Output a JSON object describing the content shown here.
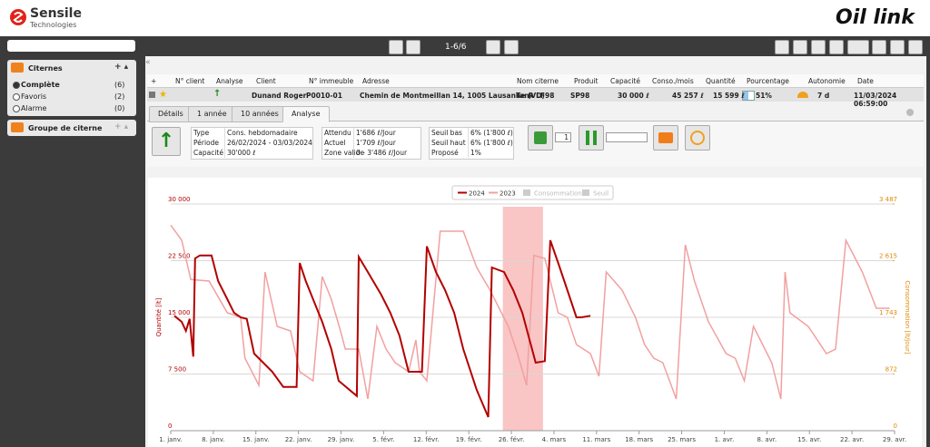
{
  "header": {
    "brand": "Sensile",
    "brand_sub": "Technologies",
    "app_name": "Oil link"
  },
  "sidebar": {
    "panels": [
      {
        "title": "Citernes",
        "items": [
          {
            "label": "Complète",
            "count": "(6)"
          },
          {
            "label": "Favoris",
            "count": "(2)"
          },
          {
            "label": "Alarme",
            "count": "(0)"
          }
        ]
      },
      {
        "title": "Groupe de citerne",
        "items": []
      }
    ]
  },
  "toolbar": {
    "pagination": "1-6/6"
  },
  "table": {
    "columns": [
      "+",
      "N° client",
      "Analyse",
      "Client",
      "N° immeuble",
      "Adresse",
      "Nom citerne",
      "Produit",
      "Capacité",
      "Conso./mois",
      "Quantité",
      "Pourcentage",
      "Autonomie",
      "Date"
    ],
    "rows": [
      [
        "Dunand Roger",
        "P0010-01",
        "Chemin de Montmeillan 14, 1005 Lausanne (VD)",
        "Tank LF98",
        "SP98",
        "30 000 ℓ",
        "45 257 ℓ",
        "15 599 ℓ",
        "51%",
        "7 d",
        "11/03/2024 06:59:00"
      ]
    ]
  },
  "tabs": [
    "Détails",
    "1 année",
    "10 années",
    "Analyse"
  ],
  "details": {
    "boxes": [
      [
        [
          "Type",
          "Cons. hebdomadaire"
        ],
        [
          "Période",
          "26/02/2024 - 03/03/2024"
        ],
        [
          "Capacité",
          "30'000 ℓ"
        ]
      ],
      [
        [
          "Attendu",
          "1'686 ℓ/Jour"
        ],
        [
          "Actuel",
          "1'709 ℓ/Jour"
        ],
        [
          "Zone valide",
          "0 - 3'486 ℓ/Jour"
        ]
      ],
      [
        [
          "Seuil bas",
          "6% (1'800 ℓ)"
        ],
        [
          "Seuil haut",
          "6% (1'800 ℓ)"
        ],
        [
          "Proposé",
          "1%"
        ]
      ]
    ],
    "input_value": "1"
  },
  "chart_data": {
    "type": "line",
    "y_label": "Quantité [lt]",
    "y2_label": "Consommation [lt/jour]",
    "legend": [
      "2024",
      "2023",
      "Consommation",
      "Seuil"
    ],
    "xlim": [
      0,
      119
    ],
    "xticks": [
      {
        "value": 0,
        "label": "1. janv."
      },
      {
        "value": 7,
        "label": "8. janv."
      },
      {
        "value": 14,
        "label": "15. janv."
      },
      {
        "value": 21,
        "label": "22. janv."
      },
      {
        "value": 28,
        "label": "29. janv."
      },
      {
        "value": 35,
        "label": "5. févr."
      },
      {
        "value": 42,
        "label": "12. févr."
      },
      {
        "value": 49,
        "label": "19. févr."
      },
      {
        "value": 56,
        "label": "26. févr."
      },
      {
        "value": 63,
        "label": "4. mars"
      },
      {
        "value": 70,
        "label": "11. mars"
      },
      {
        "value": 77,
        "label": "18. mars"
      },
      {
        "value": 84,
        "label": "25. mars"
      },
      {
        "value": 91,
        "label": "1. avr."
      },
      {
        "value": 98,
        "label": "8. avr."
      },
      {
        "value": 105,
        "label": "15. avr."
      },
      {
        "value": 112,
        "label": "22. avr."
      },
      {
        "value": 119,
        "label": "29. avr."
      }
    ],
    "ylim": [
      0,
      30000
    ],
    "yticks": [
      0,
      {
        "value": 7500,
        "label": "7 500"
      },
      {
        "value": 15000,
        "label": "15 000"
      },
      {
        "value": 22500,
        "label": "22 500"
      },
      {
        "value": 30000,
        "label": "30 000"
      }
    ],
    "y2lim": [
      0,
      3487
    ],
    "y2ticks": [
      0,
      872,
      {
        "value": 1743,
        "label": "1 743"
      },
      {
        "value": 2615,
        "label": "2 615"
      },
      {
        "value": 3487,
        "label": "3 487"
      }
    ],
    "grid": true,
    "highlight_range": [
      54.6,
      61.2
    ],
    "series": [
      {
        "name": "2024",
        "color": "#b30000",
        "x": [
          0.6,
          1.8,
          2.5,
          3.1,
          3.7,
          4.0,
          4.8,
          6.7,
          7.8,
          9.3,
          10.4,
          11.5,
          12.5,
          13.7,
          15.2,
          16.7,
          18.5,
          20.7,
          21.2,
          22.2,
          23.4,
          24.9,
          26.4,
          27.6,
          30.6,
          30.9,
          32.4,
          34.6,
          36.1,
          37.6,
          39.1,
          41.3,
          42.1,
          43.6,
          45.1,
          46.6,
          48.1,
          50.3,
          52.2,
          52.8,
          54.8,
          56.3,
          57.8,
          60.0,
          61.5,
          62.4,
          63.7,
          65.2,
          66.7,
          67.5,
          69.0
        ],
        "values": [
          15200,
          14400,
          13200,
          14800,
          9800,
          22800,
          23200,
          23200,
          19800,
          17400,
          15600,
          15000,
          14800,
          10200,
          9000,
          7800,
          5800,
          5800,
          22200,
          19800,
          17400,
          14400,
          10800,
          6600,
          4600,
          23000,
          21000,
          18000,
          15600,
          12600,
          7800,
          7800,
          24400,
          21000,
          18600,
          15600,
          10800,
          5400,
          1800,
          21600,
          21000,
          18600,
          15600,
          9000,
          9200,
          25200,
          22200,
          18600,
          15000,
          15000,
          15200
        ]
      },
      {
        "name": "2023",
        "color": "#f2a0a0",
        "x": [
          0,
          1.8,
          3.3,
          6.3,
          9.3,
          11.5,
          12.2,
          14.5,
          15.5,
          17.5,
          19.7,
          21.2,
          23.4,
          24.9,
          26.4,
          27.9,
          28.7,
          30.9,
          32.4,
          33.9,
          35.4,
          36.9,
          39.1,
          40.3,
          40.9,
          42.1,
          44.3,
          48.1,
          50.3,
          52.5,
          55.5,
          57.0,
          58.5,
          59.7,
          61.5,
          63.7,
          65.2,
          66.7,
          69.0,
          70.4,
          71.6,
          74.2,
          76.4,
          77.9,
          79.4,
          80.9,
          83.1,
          84.6,
          86.1,
          88.4,
          91.3,
          92.8,
          94.3,
          95.8,
          97.3,
          98.8,
          100.3,
          101.0,
          101.8,
          104.8,
          107.8,
          109.3,
          111.0,
          113.7,
          116.0,
          118.2
        ],
        "values": [
          27200,
          25200,
          20000,
          19800,
          15600,
          15000,
          9600,
          6000,
          21000,
          13800,
          13200,
          7800,
          6600,
          20400,
          17400,
          13200,
          10800,
          10800,
          4200,
          13800,
          10800,
          9000,
          7800,
          12000,
          7800,
          6600,
          26400,
          26400,
          21600,
          18600,
          13800,
          10200,
          6000,
          23200,
          22800,
          15600,
          15000,
          11400,
          10200,
          7200,
          21000,
          18600,
          15000,
          11400,
          9600,
          9000,
          4200,
          24600,
          19800,
          14400,
          10200,
          9600,
          6600,
          13800,
          11400,
          9000,
          4200,
          21000,
          15600,
          13800,
          10200,
          10800,
          25200,
          21000,
          16200,
          16200
        ]
      }
    ]
  }
}
